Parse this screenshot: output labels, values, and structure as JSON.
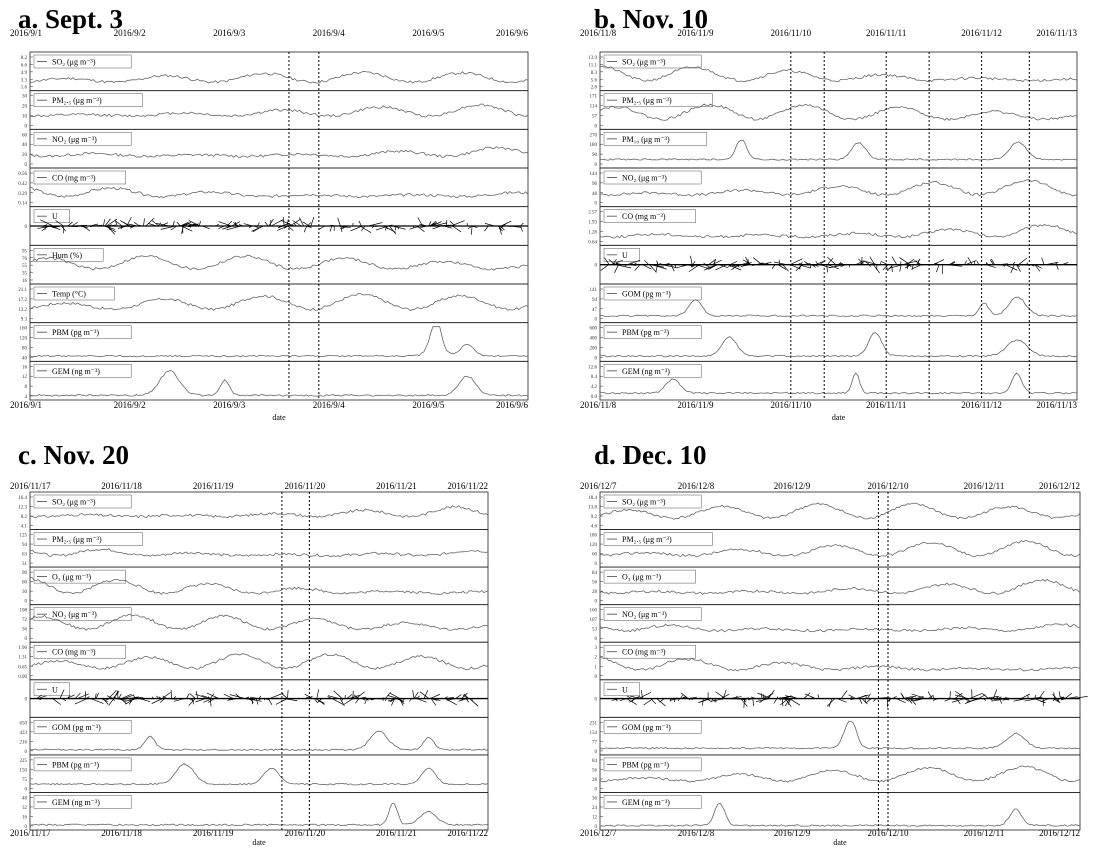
{
  "panels": [
    {
      "title": "a. Sept. 3",
      "dates": [
        "2016/9/1",
        "2016/9/2",
        "2016/9/3",
        "2016/9/4",
        "2016/9/5",
        "2016/9/6"
      ],
      "xlabel": "date",
      "event_lines": [
        2.6,
        2.9
      ],
      "rows": [
        {
          "label": "SO₂ (μg m⁻³)",
          "ticks": [
            "8.2",
            "6.6",
            "4.9",
            "3.3",
            "1.6"
          ],
          "kind": "line",
          "seed": 11,
          "base": 0.2,
          "amp": 0.3
        },
        {
          "label": "PM₂.₅ (μg m⁻³)",
          "ticks": [
            "30",
            "20",
            "10",
            "0"
          ],
          "kind": "line",
          "seed": 12,
          "base": 0.35,
          "amp": 0.35
        },
        {
          "label": "NO₂ (μg m⁻³)",
          "ticks": [
            "60",
            "40",
            "20",
            "0"
          ],
          "kind": "line",
          "seed": 13,
          "base": 0.3,
          "amp": 0.4
        },
        {
          "label": "CO (mg m⁻³)",
          "ticks": [
            "0.56",
            "0.42",
            "0.29",
            "0.14"
          ],
          "kind": "line",
          "seed": 14,
          "base": 0.25,
          "amp": 0.45
        },
        {
          "label": "U",
          "ticks": [
            "0"
          ],
          "kind": "wind",
          "seed": 15,
          "base": 0.5,
          "amp": 0.4
        },
        {
          "label": "Hum (%)",
          "ticks": [
            "95",
            "76",
            "55",
            "35",
            "16"
          ],
          "kind": "line",
          "seed": 16,
          "base": 0.4,
          "amp": 0.4
        },
        {
          "label": "Temp (°C)",
          "ticks": [
            "21.1",
            "17.2",
            "13.2",
            "9.3"
          ],
          "kind": "line",
          "seed": 17,
          "base": 0.35,
          "amp": 0.45
        },
        {
          "label": "PBM (pg m⁻³)",
          "ticks": [
            "160",
            "120",
            "80",
            "40"
          ],
          "kind": "spike",
          "seed": 18,
          "base": 0.1,
          "amp": 0.7
        },
        {
          "label": "GEM (ng m⁻³)",
          "ticks": [
            "16",
            "12",
            "8",
            "4"
          ],
          "kind": "spike",
          "seed": 19,
          "base": 0.08,
          "amp": 0.75
        }
      ]
    },
    {
      "title": "b. Nov. 10",
      "dates": [
        "2016/11/8",
        "2016/11/9",
        "2016/11/10",
        "2016/11/11",
        "2016/11/12",
        "2016/11/13"
      ],
      "xlabel": "date",
      "event_lines": [
        2.0,
        2.35,
        3.0,
        3.45,
        4.0,
        4.5
      ],
      "rows": [
        {
          "label": "SO₂ (μg m⁻³)",
          "ticks": [
            "13.9",
            "11.1",
            "8.3",
            "5.6",
            "2.8"
          ],
          "kind": "line",
          "seed": 21,
          "base": 0.25,
          "amp": 0.45
        },
        {
          "label": "PM₂.₅ (μg m⁻³)",
          "ticks": [
            "171",
            "114",
            "57",
            "0"
          ],
          "kind": "line",
          "seed": 22,
          "base": 0.25,
          "amp": 0.45
        },
        {
          "label": "PM₁₀ (μg m⁻³)",
          "ticks": [
            "270",
            "180",
            "90",
            "0"
          ],
          "kind": "spike",
          "seed": 23,
          "base": 0.2,
          "amp": 0.65
        },
        {
          "label": "NO₂ (μg m⁻³)",
          "ticks": [
            "144",
            "96",
            "48",
            "0"
          ],
          "kind": "line",
          "seed": 24,
          "base": 0.3,
          "amp": 0.45
        },
        {
          "label": "CO (mg m⁻³)",
          "ticks": [
            "2.57",
            "1.93",
            "1.28",
            "0.64"
          ],
          "kind": "line",
          "seed": 25,
          "base": 0.2,
          "amp": 0.5
        },
        {
          "label": "U",
          "ticks": [
            "0"
          ],
          "kind": "wind",
          "seed": 26,
          "base": 0.5,
          "amp": 0.4
        },
        {
          "label": "GOM (pg m⁻³)",
          "ticks": [
            "141",
            "94",
            "47",
            "0"
          ],
          "kind": "spike",
          "seed": 27,
          "base": 0.15,
          "amp": 0.65
        },
        {
          "label": "PBM (pg m⁻³)",
          "ticks": [
            "600",
            "400",
            "200",
            "0"
          ],
          "kind": "spike",
          "seed": 28,
          "base": 0.1,
          "amp": 0.75
        },
        {
          "label": "GEM (ng m⁻³)",
          "ticks": [
            "12.6",
            "8.4",
            "4.2",
            "0.0"
          ],
          "kind": "spike",
          "seed": 29,
          "base": 0.15,
          "amp": 0.65
        }
      ]
    },
    {
      "title": "c. Nov. 20",
      "dates": [
        "2016/11/17",
        "2016/11/18",
        "2016/11/19",
        "2016/11/20",
        "2016/11/21",
        "2016/11/22"
      ],
      "xlabel": "date",
      "event_lines": [
        2.75,
        3.05
      ],
      "rows": [
        {
          "label": "SO₂ (μg m⁻³)",
          "ticks": [
            "16.4",
            "12.3",
            "8.2",
            "4.1"
          ],
          "kind": "line",
          "seed": 31,
          "base": 0.35,
          "amp": 0.4
        },
        {
          "label": "PM₂.₅ (μg m⁻³)",
          "ticks": [
            "125",
            "94",
            "63",
            "31"
          ],
          "kind": "line",
          "seed": 32,
          "base": 0.3,
          "amp": 0.45
        },
        {
          "label": "O₃ (μg m⁻³)",
          "ticks": [
            "90",
            "60",
            "30",
            "0"
          ],
          "kind": "line",
          "seed": 33,
          "base": 0.3,
          "amp": 0.5
        },
        {
          "label": "NO₂ (μg m⁻³)",
          "ticks": [
            "108",
            "72",
            "36",
            "0"
          ],
          "kind": "line",
          "seed": 34,
          "base": 0.35,
          "amp": 0.45
        },
        {
          "label": "CO (mg m⁻³)",
          "ticks": [
            "1.96",
            "1.31",
            "0.65",
            "0.00"
          ],
          "kind": "line",
          "seed": 35,
          "base": 0.3,
          "amp": 0.45
        },
        {
          "label": "U",
          "ticks": [
            "0"
          ],
          "kind": "wind",
          "seed": 36,
          "base": 0.5,
          "amp": 0.4
        },
        {
          "label": "GOM (pg m⁻³)",
          "ticks": [
            "650",
            "433",
            "216",
            "0"
          ],
          "kind": "spike",
          "seed": 37,
          "base": 0.1,
          "amp": 0.75
        },
        {
          "label": "PBM (pg m⁻³)",
          "ticks": [
            "225",
            "150",
            "75",
            "0"
          ],
          "kind": "spike",
          "seed": 38,
          "base": 0.2,
          "amp": 0.65
        },
        {
          "label": "GEM (ng m⁻³)",
          "ticks": [
            "48",
            "32",
            "16",
            "0"
          ],
          "kind": "spike",
          "seed": 39,
          "base": 0.1,
          "amp": 0.75
        }
      ]
    },
    {
      "title": "d. Dec. 10",
      "dates": [
        "2016/12/7",
        "2016/12/8",
        "2016/12/9",
        "2016/12/10",
        "2016/12/11",
        "2016/12/12"
      ],
      "xlabel": "date",
      "event_lines": [
        2.9,
        3.0
      ],
      "rows": [
        {
          "label": "SO₂ (μg m⁻³)",
          "ticks": [
            "18.4",
            "13.8",
            "9.2",
            "4.6"
          ],
          "kind": "line",
          "seed": 41,
          "base": 0.3,
          "amp": 0.45
        },
        {
          "label": "PM₂.₅ (μg m⁻³)",
          "ticks": [
            "180",
            "120",
            "60",
            "0"
          ],
          "kind": "line",
          "seed": 42,
          "base": 0.3,
          "amp": 0.45
        },
        {
          "label": "O₃ (μg m⁻³)",
          "ticks": [
            "84",
            "56",
            "28",
            "0"
          ],
          "kind": "line",
          "seed": 43,
          "base": 0.3,
          "amp": 0.5
        },
        {
          "label": "NO₂ (μg m⁻³)",
          "ticks": [
            "160",
            "107",
            "53",
            "0"
          ],
          "kind": "line",
          "seed": 44,
          "base": 0.3,
          "amp": 0.45
        },
        {
          "label": "CO (mg m⁻³)",
          "ticks": [
            "3",
            "2",
            "1",
            "0"
          ],
          "kind": "line",
          "seed": 45,
          "base": 0.25,
          "amp": 0.45
        },
        {
          "label": "U",
          "ticks": [
            "0"
          ],
          "kind": "wind",
          "seed": 46,
          "base": 0.5,
          "amp": 0.4
        },
        {
          "label": "GOM (pg m⁻³)",
          "ticks": [
            "231",
            "154",
            "77",
            "0"
          ],
          "kind": "spike",
          "seed": 47,
          "base": 0.15,
          "amp": 0.7
        },
        {
          "label": "PBM (pg m⁻³)",
          "ticks": [
            "84",
            "56",
            "28",
            "0"
          ],
          "kind": "line",
          "seed": 48,
          "base": 0.3,
          "amp": 0.45
        },
        {
          "label": "GEM (ng m⁻³)",
          "ticks": [
            "36",
            "24",
            "12",
            "0"
          ],
          "kind": "spike",
          "seed": 49,
          "base": 0.08,
          "amp": 0.75
        }
      ]
    }
  ],
  "chart_data": [
    {
      "type": "line",
      "title": "a. Sept. 3",
      "xlabel": "date",
      "categories": [
        "2016/9/1",
        "2016/9/2",
        "2016/9/3",
        "2016/9/4",
        "2016/9/5",
        "2016/9/6"
      ],
      "series": [
        {
          "name": "SO₂ (μg m⁻³)"
        },
        {
          "name": "PM₂.₅ (μg m⁻³)"
        },
        {
          "name": "NO₂ (μg m⁻³)"
        },
        {
          "name": "CO (mg m⁻³)"
        },
        {
          "name": "U"
        },
        {
          "name": "Hum (%)"
        },
        {
          "name": "Temp (°C)"
        },
        {
          "name": "PBM (pg m⁻³)"
        },
        {
          "name": "GEM (ng m⁻³)"
        }
      ]
    },
    {
      "type": "line",
      "title": "b. Nov. 10",
      "xlabel": "date",
      "categories": [
        "2016/11/8",
        "2016/11/9",
        "2016/11/10",
        "2016/11/11",
        "2016/11/12",
        "2016/11/13"
      ],
      "series": [
        {
          "name": "SO₂ (μg m⁻³)"
        },
        {
          "name": "PM₂.₅ (μg m⁻³)"
        },
        {
          "name": "PM₁₀ (μg m⁻³)"
        },
        {
          "name": "NO₂ (μg m⁻³)"
        },
        {
          "name": "CO (mg m⁻³)"
        },
        {
          "name": "U"
        },
        {
          "name": "GOM (pg m⁻³)"
        },
        {
          "name": "PBM (pg m⁻³)"
        },
        {
          "name": "GEM (ng m⁻³)"
        }
      ]
    },
    {
      "type": "line",
      "title": "c. Nov. 20",
      "xlabel": "date",
      "categories": [
        "2016/11/17",
        "2016/11/18",
        "2016/11/19",
        "2016/11/20",
        "2016/11/21",
        "2016/11/22"
      ],
      "series": [
        {
          "name": "SO₂ (μg m⁻³)"
        },
        {
          "name": "PM₂.₅ (μg m⁻³)"
        },
        {
          "name": "O₃ (μg m⁻³)"
        },
        {
          "name": "NO₂ (μg m⁻³)"
        },
        {
          "name": "CO (mg m⁻³)"
        },
        {
          "name": "U"
        },
        {
          "name": "GOM (pg m⁻³)"
        },
        {
          "name": "PBM (pg m⁻³)"
        },
        {
          "name": "GEM (ng m⁻³)"
        }
      ]
    },
    {
      "type": "line",
      "title": "d. Dec. 10",
      "xlabel": "date",
      "categories": [
        "2016/12/7",
        "2016/12/8",
        "2016/12/9",
        "2016/12/10",
        "2016/12/11",
        "2016/12/12"
      ],
      "series": [
        {
          "name": "SO₂ (μg m⁻³)"
        },
        {
          "name": "PM₂.₅ (μg m⁻³)"
        },
        {
          "name": "O₃ (μg m⁻³)"
        },
        {
          "name": "NO₂ (μg m⁻³)"
        },
        {
          "name": "CO (mg m⁻³)"
        },
        {
          "name": "U"
        },
        {
          "name": "GOM (pg m⁻³)"
        },
        {
          "name": "PBM (pg m⁻³)"
        },
        {
          "name": "GEM (ng m⁻³)"
        }
      ]
    }
  ]
}
